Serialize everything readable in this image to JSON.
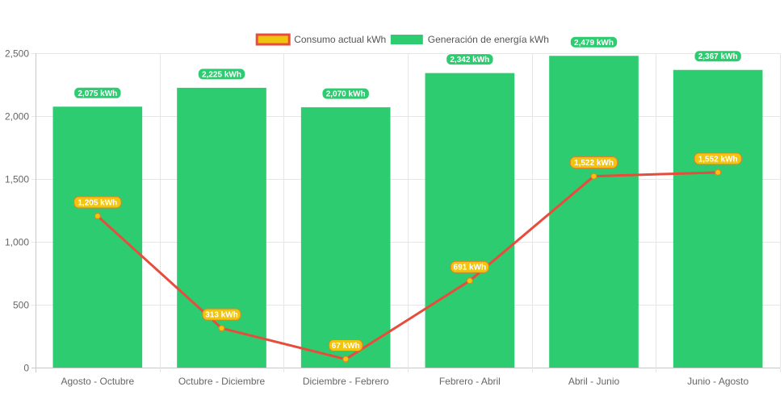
{
  "chart_data": {
    "type": "bar",
    "categories": [
      "Agosto - Octubre",
      "Octubre - Diciembre",
      "Diciembre - Febrero",
      "Febrero - Abril",
      "Abril - Junio",
      "Junio - Agosto"
    ],
    "series": [
      {
        "name": "Generación de energía kWh",
        "type": "bar",
        "color": "#2ecc71",
        "values": [
          2075,
          2225,
          2070,
          2342,
          2479,
          2367
        ],
        "labels": [
          "2,075 kWh",
          "2,225 kWh",
          "2,070 kWh",
          "2,342 kWh",
          "2,479 kWh",
          "2,367 kWh"
        ]
      },
      {
        "name": "Consumo actual kWh",
        "type": "line",
        "color": "#e74c3c",
        "point_color": "#f1c40f",
        "values": [
          1205,
          313,
          67,
          691,
          1522,
          1552
        ],
        "labels": [
          "1,205 kWh",
          "313 kWh",
          "67 kWh",
          "691 kWh",
          "1,522 kWh",
          "1,552 kWh"
        ]
      }
    ],
    "ylim": [
      0,
      2500
    ],
    "yticks": [
      0,
      500,
      1000,
      1500,
      2000,
      2500
    ],
    "ytick_labels": [
      "0",
      "500",
      "1,000",
      "1,500",
      "2,000",
      "2,500"
    ],
    "grid": true,
    "legend_position": "top",
    "legend_order": [
      "Consumo actual kWh",
      "Generación de energía kWh"
    ]
  }
}
